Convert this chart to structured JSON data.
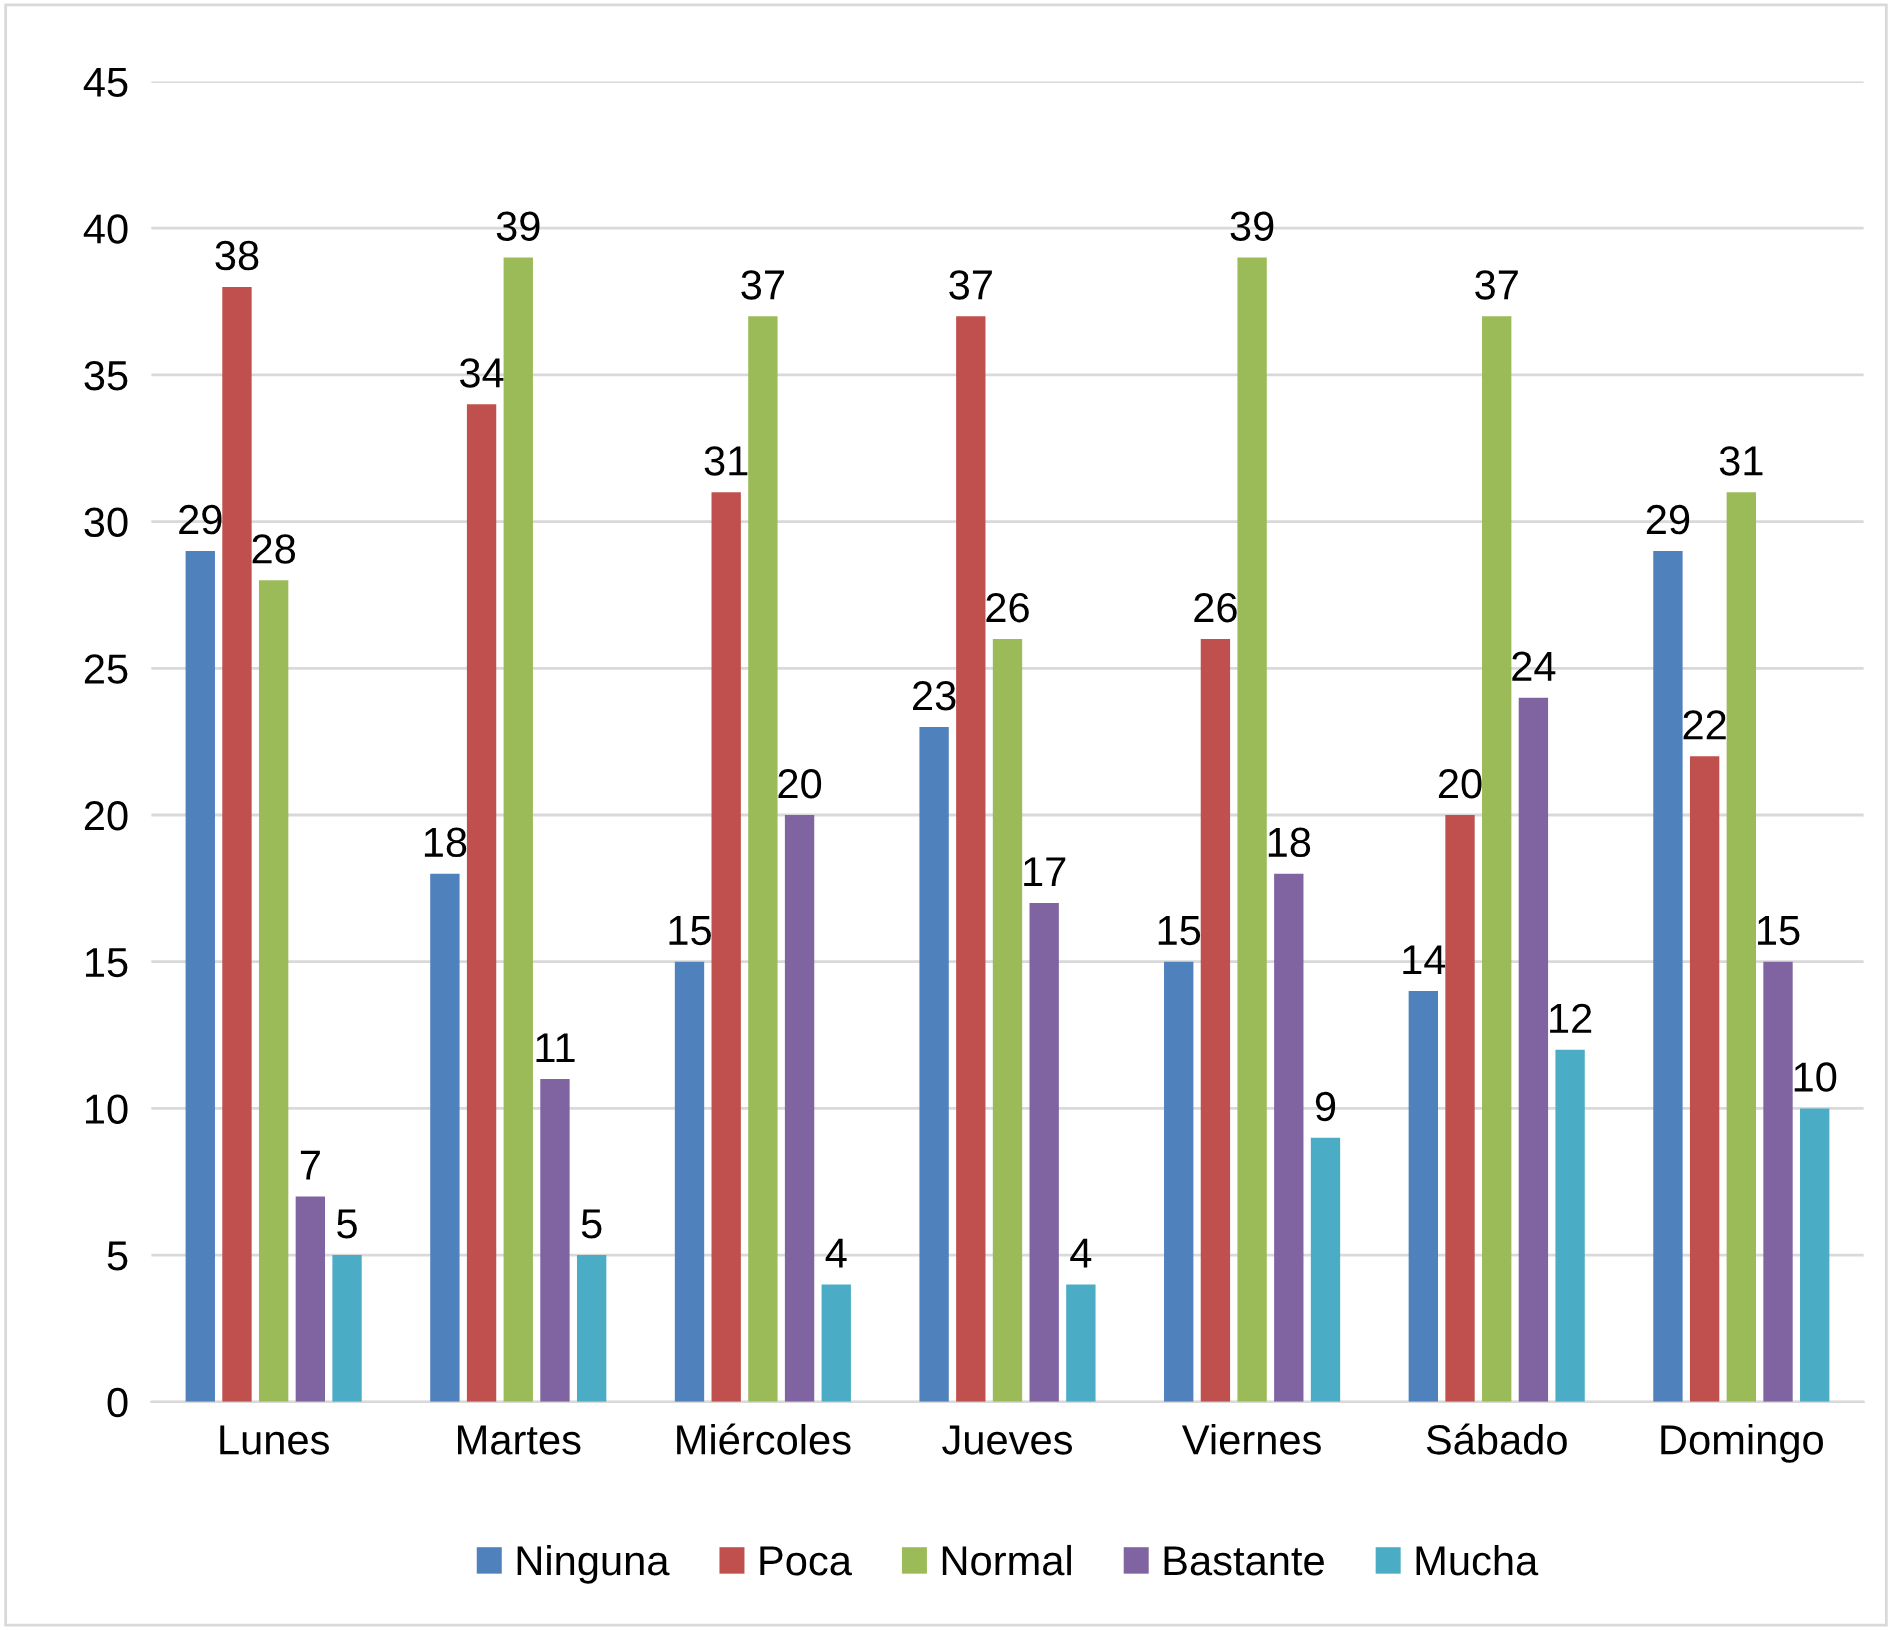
{
  "chart_data": {
    "type": "bar",
    "categories": [
      "Lunes",
      "Martes",
      "Miércoles",
      "Jueves",
      "Viernes",
      "Sábado",
      "Domingo"
    ],
    "series": [
      {
        "name": "Ninguna",
        "color": "#4f81bd",
        "values": [
          29,
          18,
          15,
          23,
          15,
          14,
          29
        ]
      },
      {
        "name": "Poca",
        "color": "#c0504d",
        "values": [
          38,
          34,
          31,
          37,
          26,
          20,
          22
        ]
      },
      {
        "name": "Normal",
        "color": "#9bbb59",
        "values": [
          28,
          39,
          37,
          26,
          39,
          37,
          31
        ]
      },
      {
        "name": "Bastante",
        "color": "#8064a2",
        "values": [
          7,
          11,
          20,
          17,
          18,
          24,
          15
        ]
      },
      {
        "name": "Mucha",
        "color": "#4bacc6",
        "values": [
          5,
          5,
          4,
          4,
          9,
          12,
          10
        ]
      }
    ],
    "ylim": [
      0,
      45
    ],
    "yticks": [
      0,
      5,
      10,
      15,
      20,
      25,
      30,
      35,
      40,
      45
    ],
    "grid": "y",
    "legend": "bottom",
    "data_labels": true
  }
}
